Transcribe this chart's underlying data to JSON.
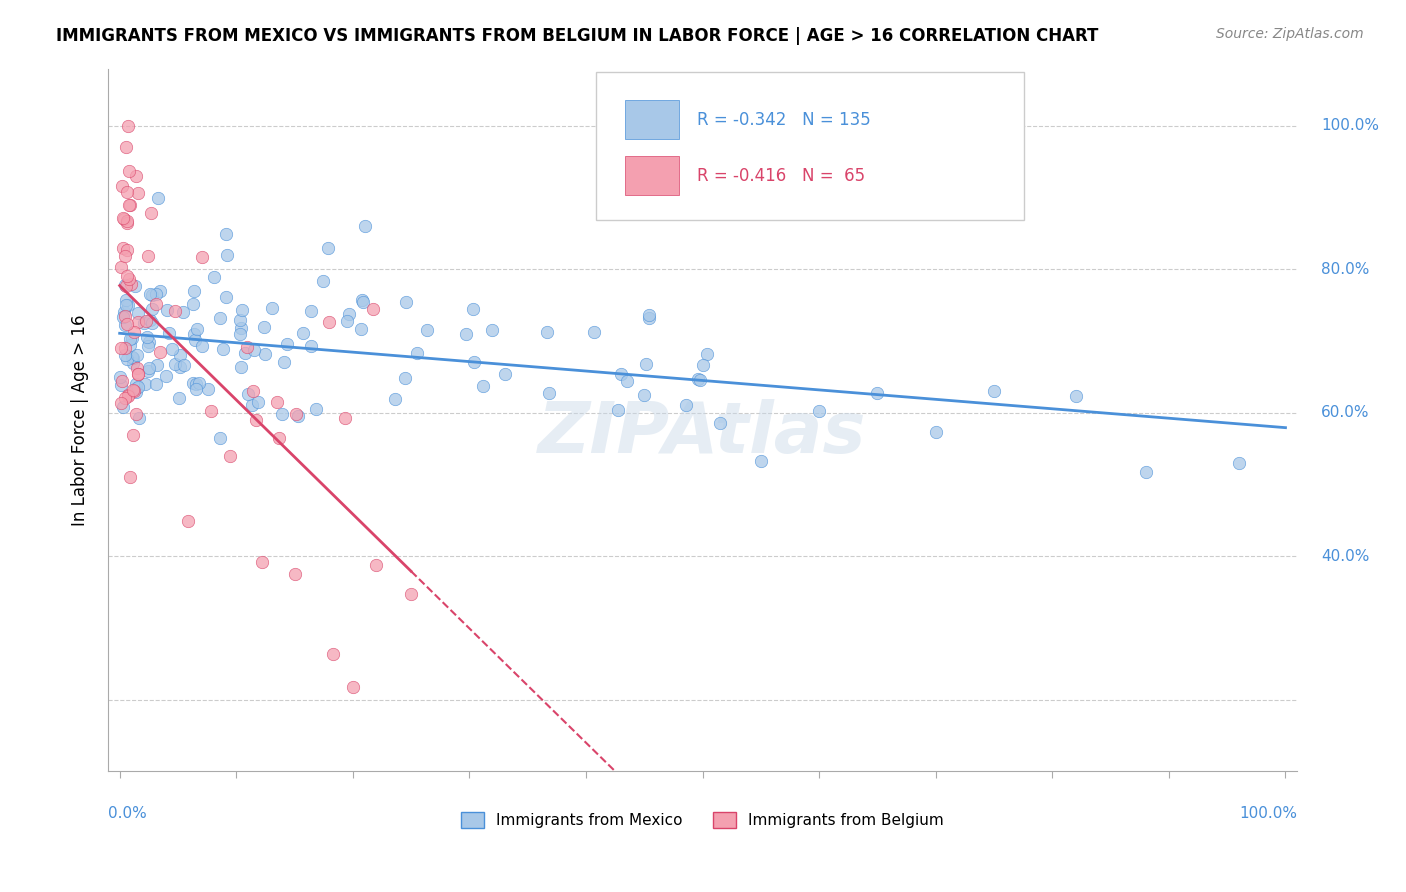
{
  "title": "IMMIGRANTS FROM MEXICO VS IMMIGRANTS FROM BELGIUM IN LABOR FORCE | AGE > 16 CORRELATION CHART",
  "source_text": "Source: ZipAtlas.com",
  "ylabel": "In Labor Force | Age > 16",
  "legend_mexico": "Immigrants from Mexico",
  "legend_belgium": "Immigrants from Belgium",
  "R_mexico": -0.342,
  "N_mexico": 135,
  "R_belgium": -0.416,
  "N_belgium": 65,
  "color_mexico": "#a8c8e8",
  "color_belgium": "#f4a0b0",
  "trendline_mexico": "#4a90d9",
  "trendline_belgium": "#d9446a",
  "background": "#ffffff",
  "watermark": "ZIPAtlas"
}
